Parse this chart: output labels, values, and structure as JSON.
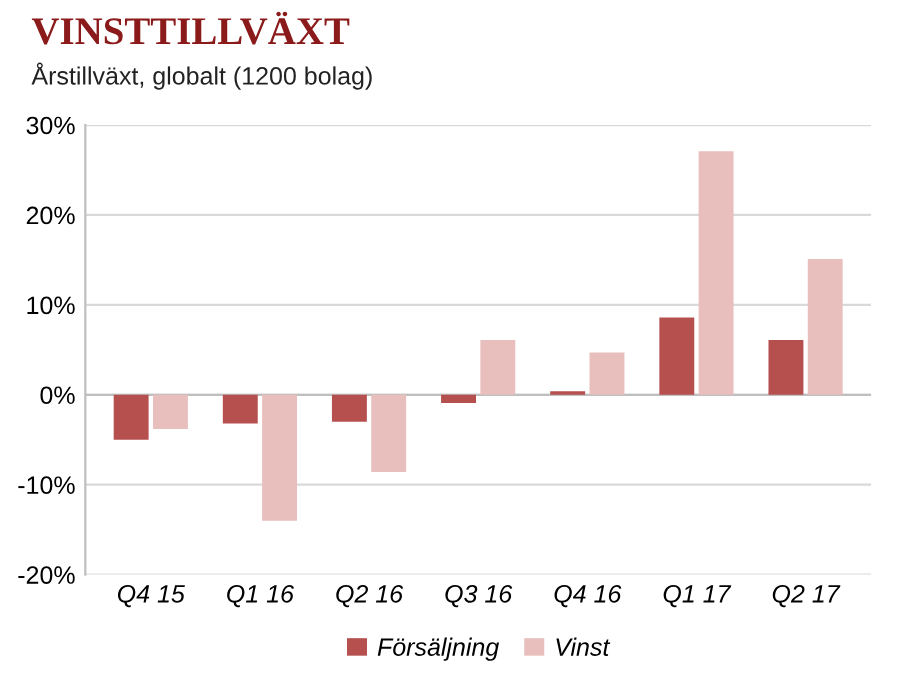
{
  "chart_data": {
    "type": "bar",
    "title": "VINSTTILLVÄXT",
    "subtitle": "Årstillväxt, globalt (1200 bolag)",
    "categories": [
      "Q4 15",
      "Q1 16",
      "Q2 16",
      "Q3 16",
      "Q4 16",
      "Q1 17",
      "Q2 17"
    ],
    "series": [
      {
        "name": "Försäljning",
        "color": "#b5504f",
        "values": [
          -5.0,
          -3.2,
          -3.0,
          -0.9,
          0.4,
          8.6,
          6.1
        ]
      },
      {
        "name": "Vinst",
        "color": "#e8bfbd",
        "values": [
          -3.8,
          -14.0,
          -8.6,
          6.1,
          4.7,
          27.1,
          15.1
        ]
      }
    ],
    "ylim": [
      -20,
      30
    ],
    "yticks": [
      {
        "value": -20,
        "label": "-20%"
      },
      {
        "value": -10,
        "label": "-10%"
      },
      {
        "value": 0,
        "label": "0%"
      },
      {
        "value": 10,
        "label": "10%"
      },
      {
        "value": 20,
        "label": "20%"
      },
      {
        "value": 30,
        "label": "30%"
      }
    ],
    "grid": "y",
    "legend": "bottom"
  }
}
